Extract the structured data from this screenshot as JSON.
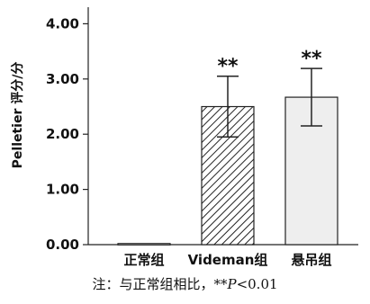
{
  "chart_data": {
    "type": "bar",
    "categories": [
      "正常组",
      "Videman组",
      "悬吊组"
    ],
    "values": [
      0.02,
      2.5,
      2.67
    ],
    "errors": [
      0.0,
      0.55,
      0.52
    ],
    "significance": [
      "",
      "**",
      "**"
    ],
    "fills": [
      "pattern-none",
      "hatch",
      "light-gray"
    ],
    "bar_colors": {
      "hatch_stroke": "#222222",
      "light_fill": "#eeeeee",
      "outline": "#222222"
    },
    "ylabel": "Pelletier 评分/分",
    "xlabel": "",
    "title": "",
    "ylim": [
      0,
      4.3
    ],
    "yticks": [
      "0.00",
      "1.00",
      "2.00",
      "3.00",
      "4.00"
    ],
    "grid": false
  },
  "note": {
    "prefix": "注：与正常组相比，**",
    "p_symbol": "P",
    "suffix": "<0.01"
  }
}
